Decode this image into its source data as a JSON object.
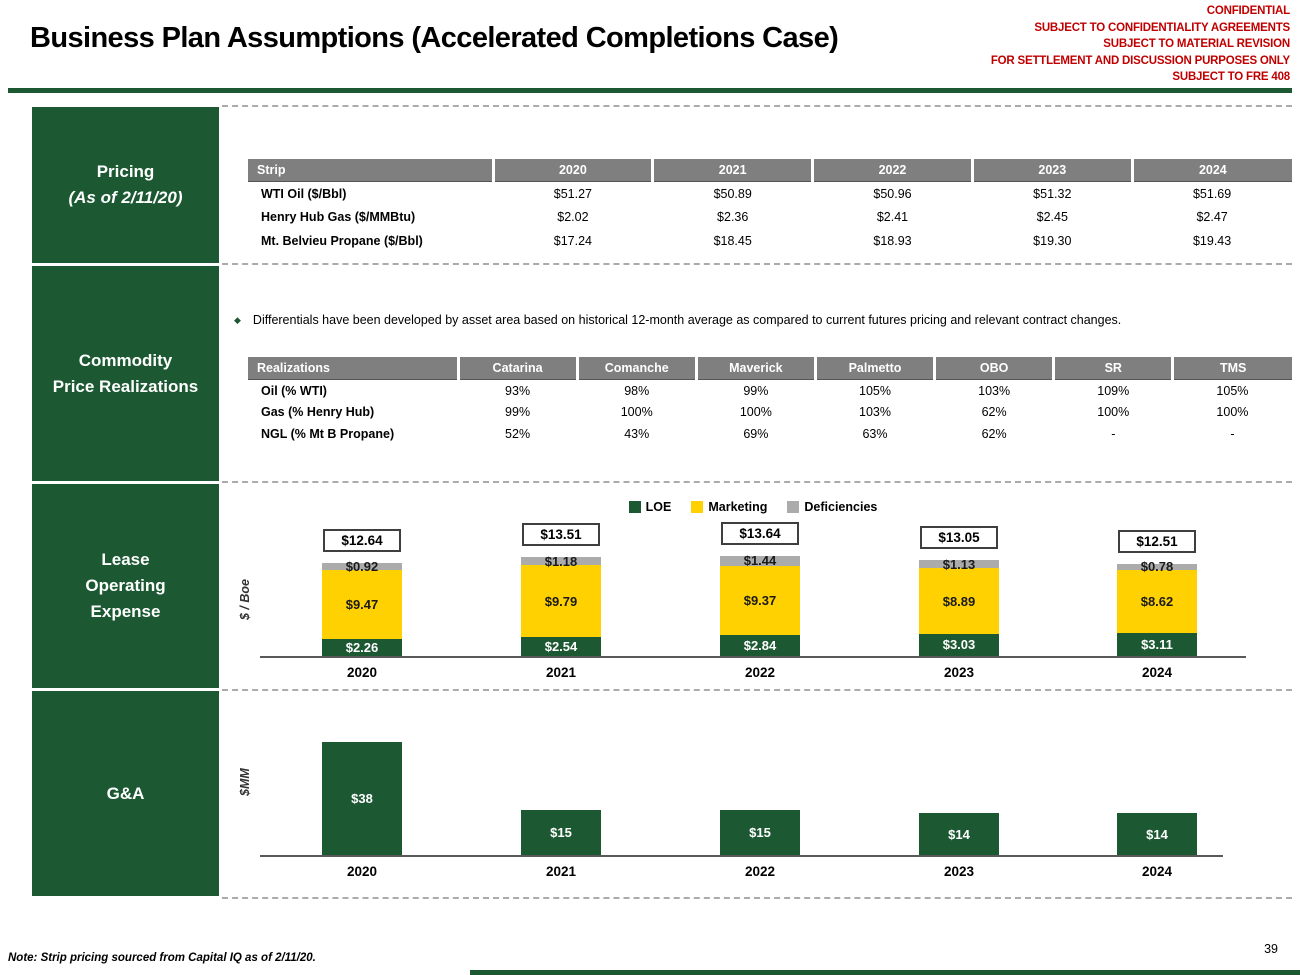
{
  "header": {
    "title": "Business Plan Assumptions (Accelerated Completions Case)",
    "confidential_lines": [
      "CONFIDENTIAL",
      "SUBJECT TO CONFIDENTIALITY AGREEMENTS",
      "SUBJECT TO MATERIAL REVISION",
      "FOR SETTLEMENT AND DISCUSSION PURPOSES ONLY",
      "SUBJECT TO FRE 408"
    ]
  },
  "colors": {
    "brand_green": "#1C5933",
    "marketing_yellow": "#FFD100",
    "deficiencies_gray": "#ABABAB",
    "table_header_gray": "#7F7F7F",
    "confidential_red": "#C00000"
  },
  "sections": {
    "pricing": {
      "label_lines": [
        "Pricing",
        "(As of 2/11/20)"
      ],
      "table": {
        "headers": [
          "Strip",
          "2020",
          "2021",
          "2022",
          "2023",
          "2024"
        ],
        "rows": [
          {
            "label": "WTI Oil ($/Bbl)",
            "values": [
              "$51.27",
              "$50.89",
              "$50.96",
              "$51.32",
              "$51.69"
            ]
          },
          {
            "label": "Henry Hub Gas ($/MMBtu)",
            "values": [
              "$2.02",
              "$2.36",
              "$2.41",
              "$2.45",
              "$2.47"
            ]
          },
          {
            "label": "Mt. Belvieu Propane ($/Bbl)",
            "values": [
              "$17.24",
              "$18.45",
              "$18.93",
              "$19.30",
              "$19.43"
            ]
          }
        ]
      }
    },
    "realizations": {
      "label_lines": [
        "Commodity",
        "Price Realizations"
      ],
      "bullet": "Differentials have been developed by asset area based on historical 12-month average as compared to current futures pricing and relevant contract changes.",
      "table": {
        "headers": [
          "Realizations",
          "Catarina",
          "Comanche",
          "Maverick",
          "Palmetto",
          "OBO",
          "SR",
          "TMS"
        ],
        "rows": [
          {
            "label": "Oil (% WTI)",
            "values": [
              "93%",
              "98%",
              "99%",
              "105%",
              "103%",
              "109%",
              "105%"
            ]
          },
          {
            "label": "Gas (% Henry Hub)",
            "values": [
              "99%",
              "100%",
              "100%",
              "103%",
              "62%",
              "100%",
              "100%"
            ]
          },
          {
            "label": "NGL (% Mt B Propane)",
            "values": [
              "52%",
              "43%",
              "69%",
              "63%",
              "62%",
              "-",
              "-"
            ]
          }
        ]
      }
    },
    "loe": {
      "label_lines": [
        "Lease",
        "Operating",
        "Expense"
      ]
    },
    "ga": {
      "label_lines": [
        "G&A"
      ]
    }
  },
  "chart_data": [
    {
      "type": "bar",
      "stacked": true,
      "title": "Lease Operating Expense",
      "ylabel": "$ / Boe",
      "categories": [
        "2020",
        "2021",
        "2022",
        "2023",
        "2024"
      ],
      "series": [
        {
          "name": "LOE",
          "color": "#1C5933",
          "values": [
            2.26,
            2.54,
            2.84,
            3.03,
            3.11
          ],
          "labels": [
            "$2.26",
            "$2.54",
            "$2.84",
            "$3.03",
            "$3.11"
          ]
        },
        {
          "name": "Marketing",
          "color": "#FFD100",
          "values": [
            9.47,
            9.79,
            9.37,
            8.89,
            8.62
          ],
          "labels": [
            "$9.47",
            "$9.79",
            "$9.37",
            "$8.89",
            "$8.62"
          ]
        },
        {
          "name": "Deficiencies",
          "color": "#ABABAB",
          "values": [
            0.92,
            1.18,
            1.44,
            1.13,
            0.78
          ],
          "labels": [
            "$0.92",
            "$1.18",
            "$1.44",
            "$1.13",
            "$0.78"
          ]
        }
      ],
      "totals": [
        12.64,
        13.51,
        13.64,
        13.05,
        12.51
      ],
      "total_labels": [
        "$12.64",
        "$13.51",
        "$13.64",
        "$13.05",
        "$12.51"
      ],
      "legend_position": "top",
      "grid": false,
      "ylim": [
        0,
        15
      ]
    },
    {
      "type": "bar",
      "stacked": false,
      "title": "G&A",
      "ylabel": "$MM",
      "categories": [
        "2020",
        "2021",
        "2022",
        "2023",
        "2024"
      ],
      "values": [
        38,
        15,
        15,
        14,
        14
      ],
      "labels": [
        "$38",
        "$15",
        "$15",
        "$14",
        "$14"
      ],
      "bar_color": "#1C5933",
      "grid": false,
      "ylim": [
        0,
        42
      ]
    }
  ],
  "footer": {
    "note": "Note: Strip pricing sourced from Capital IQ as of 2/11/20.",
    "page_number": "39"
  }
}
